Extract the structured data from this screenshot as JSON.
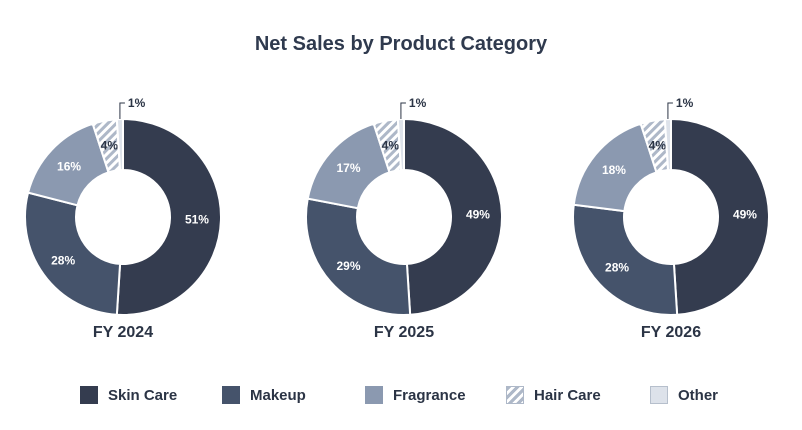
{
  "chart_data": {
    "type": "pie",
    "title": "Net Sales by Product Category",
    "legend_position": "bottom",
    "categories": [
      "Skin Care",
      "Makeup",
      "Fragrance",
      "Hair Care",
      "Other"
    ],
    "colors": [
      "#343c4f",
      "#45536b",
      "#8b99b0",
      "#c4ccd8",
      "#dde2ea"
    ],
    "charts": [
      {
        "label": "FY 2024",
        "values": [
          51,
          28,
          16,
          4,
          1
        ],
        "labels": [
          "51%",
          "28%",
          "16%",
          "4%",
          "1%"
        ]
      },
      {
        "label": "FY 2025",
        "values": [
          49,
          29,
          17,
          4,
          1
        ],
        "labels": [
          "49%",
          "29%",
          "17%",
          "4%",
          "1%"
        ]
      },
      {
        "label": "FY 2026",
        "values": [
          49,
          28,
          18,
          4,
          1
        ],
        "labels": [
          "49%",
          "28%",
          "18%",
          "4%",
          "1%"
        ]
      }
    ]
  }
}
